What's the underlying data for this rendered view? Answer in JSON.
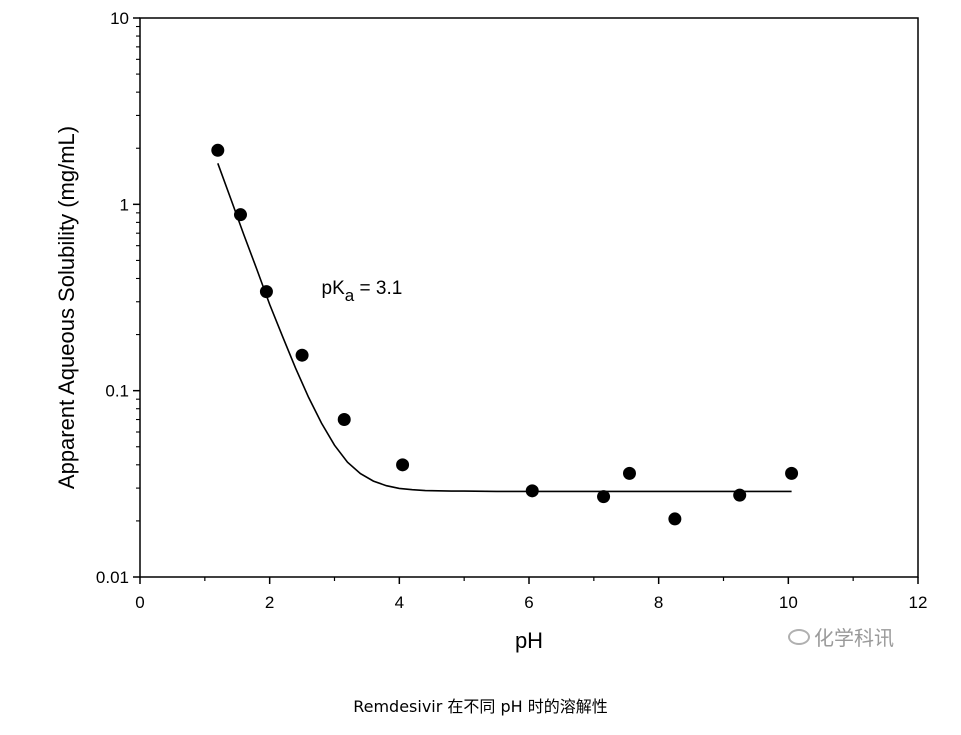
{
  "caption": "Remdesivir 在不同 pH 时的溶解性",
  "watermark": "化学科讯",
  "watermark_icon": "wechat-icon",
  "chart_data": {
    "type": "scatter",
    "title": "",
    "xlabel": "pH",
    "ylabel": "Apparent Aqueous Solubility (mg/mL)",
    "xlim": [
      0,
      12
    ],
    "ylim": [
      0.01,
      10
    ],
    "y_scale": "log",
    "grid": false,
    "x_ticks": [
      0,
      2,
      4,
      6,
      8,
      10,
      12
    ],
    "x_tick_labels": [
      "0",
      "2",
      "4",
      "6",
      "8",
      "10",
      "12"
    ],
    "y_ticks": [
      0.01,
      0.1,
      1,
      10
    ],
    "y_tick_labels": [
      "0.01",
      "0.1",
      "1",
      "10"
    ],
    "annotation": {
      "text": "pK",
      "subscript": "a",
      "suffix": " = 3.1",
      "at": [
        2.8,
        0.33
      ]
    },
    "series": [
      {
        "kind": "points",
        "color": "#000000",
        "x": [
          1.2,
          1.55,
          1.95,
          2.5,
          3.15,
          4.05,
          6.05,
          7.15,
          7.55,
          8.25,
          9.25,
          10.05
        ],
        "y": [
          1.95,
          0.88,
          0.34,
          0.155,
          0.07,
          0.04,
          0.029,
          0.027,
          0.036,
          0.0205,
          0.0275,
          0.036
        ]
      },
      {
        "kind": "fit-curve",
        "color": "#000000",
        "x": [
          1.2,
          1.4,
          1.6,
          1.8,
          2.0,
          2.2,
          2.4,
          2.6,
          2.8,
          3.0,
          3.2,
          3.4,
          3.6,
          3.8,
          4.0,
          4.2,
          4.4,
          4.6,
          4.8,
          5.0,
          5.5,
          6.0,
          7.0,
          8.0,
          9.0,
          10.05
        ],
        "y": [
          1.66,
          1.07,
          0.69,
          0.45,
          0.29,
          0.195,
          0.132,
          0.092,
          0.067,
          0.051,
          0.0413,
          0.0359,
          0.0327,
          0.0309,
          0.0299,
          0.0294,
          0.0291,
          0.029,
          0.0289,
          0.0289,
          0.0288,
          0.0288,
          0.0288,
          0.0288,
          0.0288,
          0.0288
        ]
      }
    ]
  }
}
